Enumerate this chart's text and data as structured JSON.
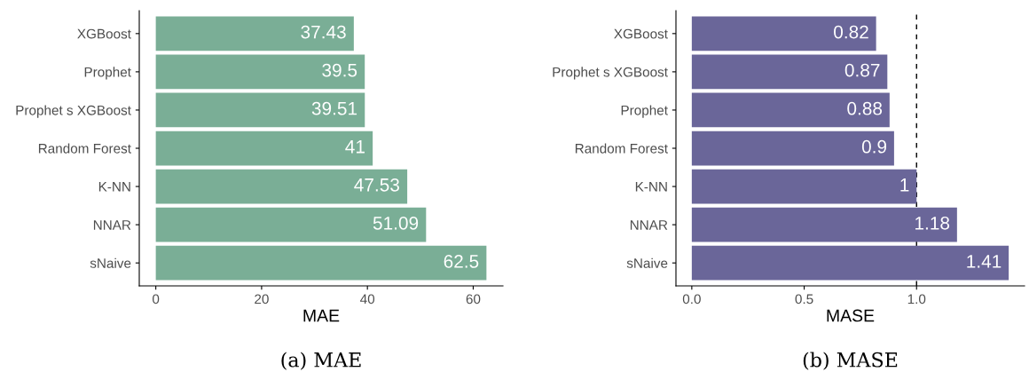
{
  "chart_data": [
    {
      "type": "bar",
      "orientation": "horizontal",
      "xlabel": "MAE",
      "categories": [
        "XGBoost",
        "Prophet",
        "Prophet s XGBoost",
        "Random Forest",
        "K-NN",
        "NNAR",
        "sNaive"
      ],
      "values": [
        37.43,
        39.5,
        39.51,
        41,
        47.53,
        51.09,
        62.5
      ],
      "color": "#7aae96",
      "data_labels": true,
      "xlim": [
        -3.125,
        65.625
      ],
      "xticks": [
        0,
        20,
        40,
        60
      ],
      "grid": false,
      "annotations": [
        "(a) MAE"
      ]
    },
    {
      "type": "bar",
      "orientation": "horizontal",
      "xlabel": "MASE",
      "categories": [
        "XGBoost",
        "Prophet s XGBoost",
        "Prophet",
        "Random Forest",
        "K-NN",
        "NNAR",
        "sNaive"
      ],
      "values": [
        0.82,
        0.87,
        0.88,
        0.9,
        1,
        1.18,
        1.41
      ],
      "color": "#6a6699",
      "data_labels": true,
      "xlim": [
        -0.0705,
        1.4805
      ],
      "xticks": [
        {
          "value": 0,
          "label": "0.0"
        },
        {
          "value": 0.5,
          "label": "0.5"
        },
        {
          "value": 1,
          "label": "1.0"
        }
      ],
      "grid": false,
      "ref_lines": [
        {
          "axis": "x",
          "value": 1,
          "color": "#000000",
          "line_style": "dashed"
        }
      ],
      "annotations": [
        "(b) MASE"
      ]
    }
  ]
}
